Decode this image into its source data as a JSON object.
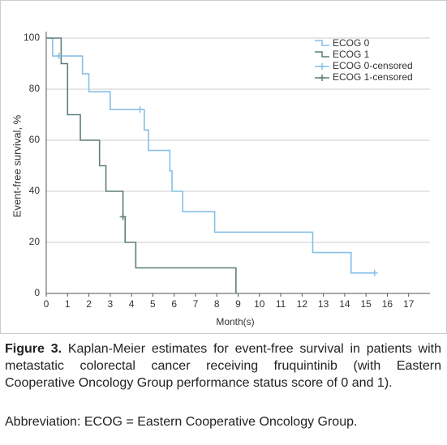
{
  "chart_data": {
    "type": "km",
    "xlabel": "Month(s)",
    "ylabel": "Event-free survival, %",
    "xlim": [
      0,
      18
    ],
    "ylim": [
      0,
      100
    ],
    "xticks": [
      0,
      1,
      2,
      3,
      4,
      5,
      6,
      7,
      8,
      9,
      10,
      11,
      12,
      13,
      14,
      15,
      16,
      17
    ],
    "yticks": [
      0,
      20,
      40,
      60,
      80,
      100
    ],
    "grid": true,
    "legend": "upper right",
    "series": [
      {
        "name": "ECOG 0",
        "color": "#86bfe6",
        "style": "step",
        "x": [
          0,
          0.3,
          1.7,
          2.0,
          3.0,
          4.6,
          4.8,
          5.8,
          5.9,
          6.4,
          7.9,
          12.5,
          14.3,
          15.4
        ],
        "values": [
          100,
          93,
          86,
          79,
          72,
          64,
          56,
          48,
          40,
          32,
          24,
          16,
          8,
          8
        ]
      },
      {
        "name": "ECOG 1",
        "color": "#5f7f7c",
        "style": "step",
        "x": [
          0,
          0.7,
          1.0,
          1.6,
          2.5,
          2.8,
          3.6,
          3.7,
          4.2,
          8.9
        ],
        "values": [
          100,
          90,
          70,
          60,
          50,
          40,
          30,
          20,
          10,
          0
        ]
      },
      {
        "name": "ECOG 0-censored",
        "color": "#86bfe6",
        "style": "plus",
        "x": [
          0.6,
          4.4,
          15.4
        ],
        "values": [
          93,
          72,
          8
        ]
      },
      {
        "name": "ECOG 1-censored",
        "color": "#5f7f7c",
        "style": "plus",
        "x": [
          3.6
        ],
        "values": [
          30
        ]
      }
    ]
  },
  "caption": {
    "label": "Figure 3.",
    "text": "Kaplan-Meier estimates for event-free survival in patients with metastatic colorectal cancer receiving fruquintinib (with Eastern Cooperative Oncology Group performance status score of 0 and 1).",
    "abbreviation": "Abbreviation: ECOG = Eastern Cooperative Oncology Group."
  }
}
